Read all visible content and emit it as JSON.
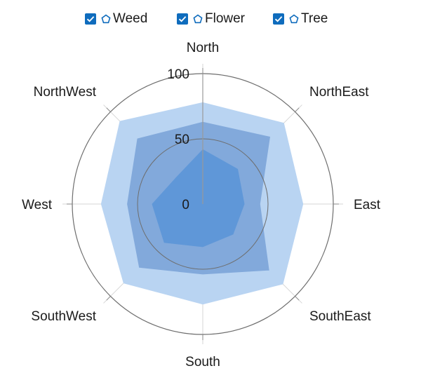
{
  "chart_data": {
    "type": "radar",
    "categories": [
      "North",
      "NorthEast",
      "East",
      "SouthEast",
      "South",
      "SouthWest",
      "West",
      "NorthWest"
    ],
    "series": [
      {
        "name": "Tree",
        "values": [
          78,
          88,
          77,
          87,
          77,
          86,
          78,
          90
        ]
      },
      {
        "name": "Flower",
        "values": [
          63,
          73,
          44,
          72,
          54,
          69,
          58,
          71
        ]
      },
      {
        "name": "Weed",
        "values": [
          42,
          38,
          32,
          33,
          33,
          42,
          39,
          29
        ]
      }
    ],
    "radial_ticks": [
      "0",
      "50",
      "100"
    ],
    "rlim": [
      0,
      100
    ],
    "colors": {
      "Tree": "#b9d4f2",
      "Flower": "#82a9db",
      "Weed": "#5f97d8",
      "grid": "#d6d6d6",
      "circle": "#6e6e6e",
      "checkbox": "#0f6cbd"
    }
  },
  "legend": {
    "items": [
      {
        "label": "Weed",
        "icon": "pentagon-icon"
      },
      {
        "label": "Flower",
        "icon": "pentagon-icon"
      },
      {
        "label": "Tree",
        "icon": "pentagon-icon"
      }
    ]
  }
}
